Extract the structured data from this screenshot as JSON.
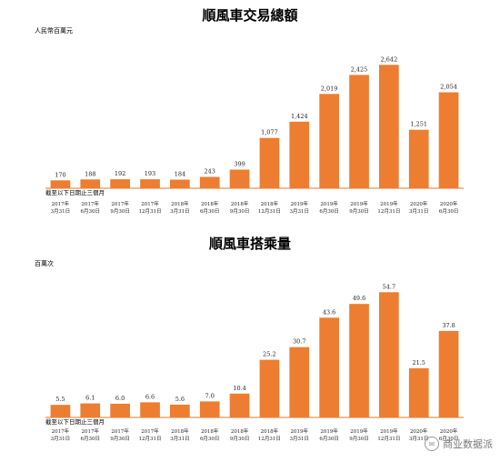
{
  "colors": {
    "bar": "#ED7D31",
    "axis": "#E07A2E",
    "text": "#222222"
  },
  "chart_data": [
    {
      "type": "bar",
      "title": "順風車交易總額",
      "unit": "人民幣百萬元",
      "period_note": "截至以下日期止三個月",
      "categories": [
        [
          "2017年",
          "3月31日"
        ],
        [
          "2017年",
          "6月30日"
        ],
        [
          "2017年",
          "9月30日"
        ],
        [
          "2017年",
          "12月31日"
        ],
        [
          "2018年",
          "3月31日"
        ],
        [
          "2018年",
          "6月30日"
        ],
        [
          "2018年",
          "9月30日"
        ],
        [
          "2018年",
          "12月31日"
        ],
        [
          "2019年",
          "3月31日"
        ],
        [
          "2019年",
          "6月30日"
        ],
        [
          "2019年",
          "9月30日"
        ],
        [
          "2019年",
          "12月31日"
        ],
        [
          "2020年",
          "3月31日"
        ],
        [
          "2020年",
          "6月30日"
        ]
      ],
      "values": [
        170,
        188,
        192,
        193,
        184,
        243,
        399,
        1077,
        1424,
        2019,
        2425,
        2642,
        1251,
        2054
      ],
      "value_labels": [
        "170",
        "188",
        "192",
        "193",
        "184",
        "243",
        "399",
        "1,077",
        "1,424",
        "2,019",
        "2,425",
        "2,642",
        "1,251",
        "2,054"
      ],
      "ylim": [
        0,
        2900
      ]
    },
    {
      "type": "bar",
      "title": "順風車搭乘量",
      "unit": "百萬次",
      "period_note": "截至以下日期止三個月",
      "categories": [
        [
          "2017年",
          "3月31日"
        ],
        [
          "2017年",
          "6月30日"
        ],
        [
          "2017年",
          "9月30日"
        ],
        [
          "2017年",
          "12月31日"
        ],
        [
          "2018年",
          "3月31日"
        ],
        [
          "2018年",
          "6月30日"
        ],
        [
          "2018年",
          "9月30日"
        ],
        [
          "2018年",
          "12月31日"
        ],
        [
          "2019年",
          "3月31日"
        ],
        [
          "2019年",
          "6月30日"
        ],
        [
          "2019年",
          "9月30日"
        ],
        [
          "2019年",
          "12月31日"
        ],
        [
          "2020年",
          "3月31日"
        ],
        [
          "2020年",
          "6月30日"
        ]
      ],
      "values": [
        5.5,
        6.1,
        6.0,
        6.6,
        5.6,
        7.0,
        10.4,
        25.2,
        30.7,
        43.6,
        49.6,
        54.7,
        21.5,
        37.8
      ],
      "value_labels": [
        "5.5",
        "6.1",
        "6.0",
        "6.6",
        "5.6",
        "7.0",
        "10.4",
        "25.2",
        "30.7",
        "43.6",
        "49.6",
        "54.7",
        "21.5",
        "37.8"
      ],
      "ylim": [
        0,
        60
      ]
    }
  ],
  "watermark": {
    "text": "商业数据派",
    "icon": "wechat-icon"
  }
}
